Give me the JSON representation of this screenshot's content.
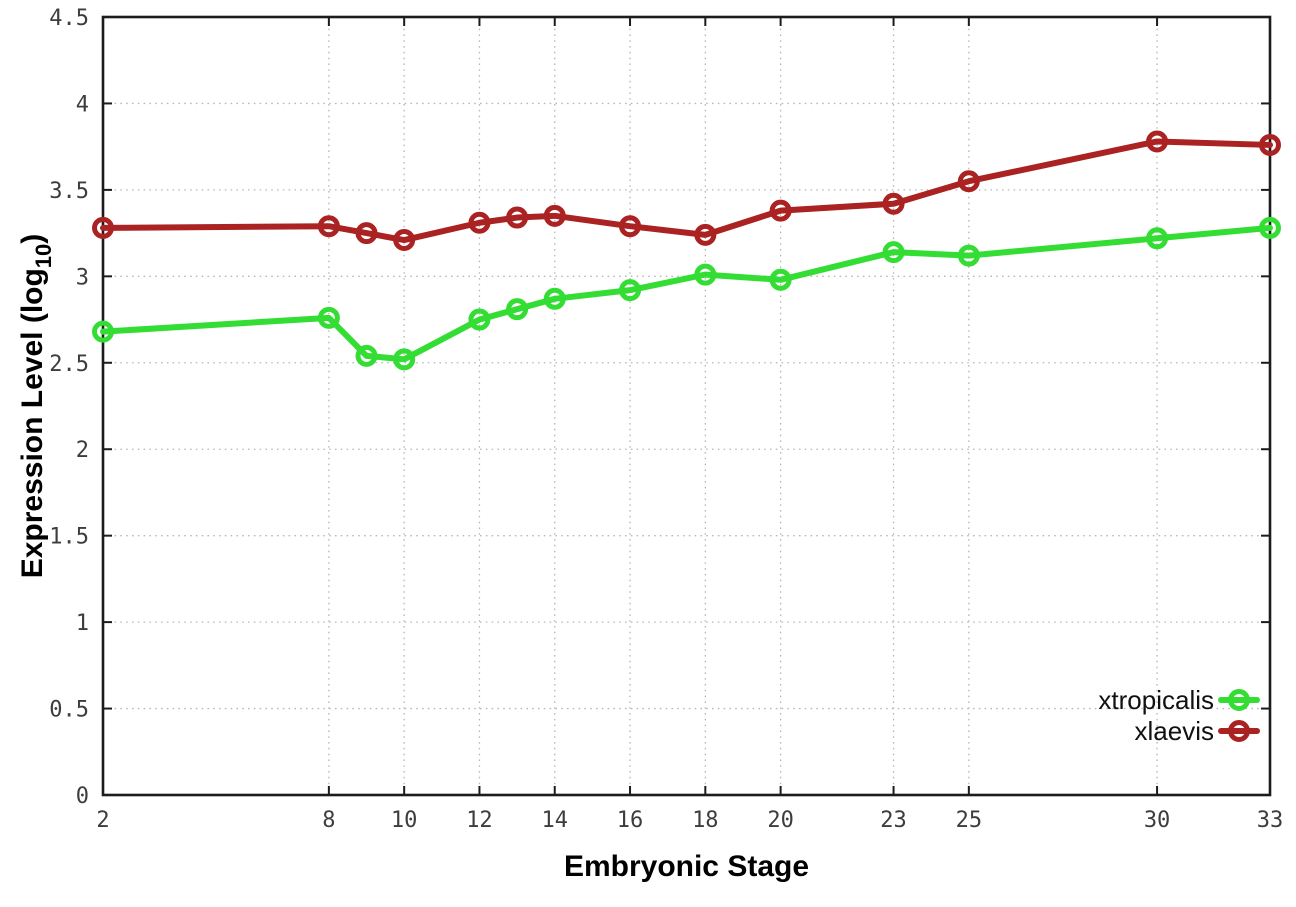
{
  "figure": {
    "background": "#ffffff"
  },
  "chart_data": {
    "type": "line",
    "title": "",
    "xlabel": "Embryonic Stage",
    "ylabel": {
      "prefix": "Expression Level (log",
      "sub": "10",
      "suffix": ")"
    },
    "xlim": [
      2,
      33
    ],
    "ylim": [
      0,
      4.5
    ],
    "x_ticks": [
      2,
      8,
      10,
      12,
      14,
      16,
      18,
      20,
      23,
      25,
      30,
      33
    ],
    "y_ticks": [
      0,
      0.5,
      1,
      1.5,
      2,
      2.5,
      3,
      3.5,
      4,
      4.5
    ],
    "y_tick_labels": [
      "0",
      "0.5",
      "1",
      "1.5",
      "2",
      "2.5",
      "3",
      "3.5",
      "4",
      "4.5"
    ],
    "grid": true,
    "x": [
      2,
      8,
      9,
      10,
      12,
      13,
      14,
      16,
      18,
      20,
      23,
      25,
      30,
      33
    ],
    "series": [
      {
        "name": "xtropicalis",
        "color": "#33dd33",
        "marker": "open-circle",
        "values": [
          2.68,
          2.76,
          2.54,
          2.52,
          2.75,
          2.81,
          2.87,
          2.92,
          3.01,
          2.98,
          3.14,
          3.12,
          3.22,
          3.28
        ]
      },
      {
        "name": "xlaevis",
        "color": "#aa2222",
        "marker": "open-circle",
        "values": [
          3.28,
          3.29,
          3.25,
          3.21,
          3.31,
          3.34,
          3.35,
          3.29,
          3.24,
          3.38,
          3.42,
          3.55,
          3.78,
          3.76
        ]
      }
    ],
    "legend": {
      "position": "bottom-right-inside",
      "entries": [
        "xtropicalis",
        "xlaevis"
      ]
    },
    "colors": {
      "grid": "#b8b8b8",
      "border": "#1c1c1c",
      "tick_text": "#3d3d3d",
      "label_text": "#000000"
    }
  }
}
